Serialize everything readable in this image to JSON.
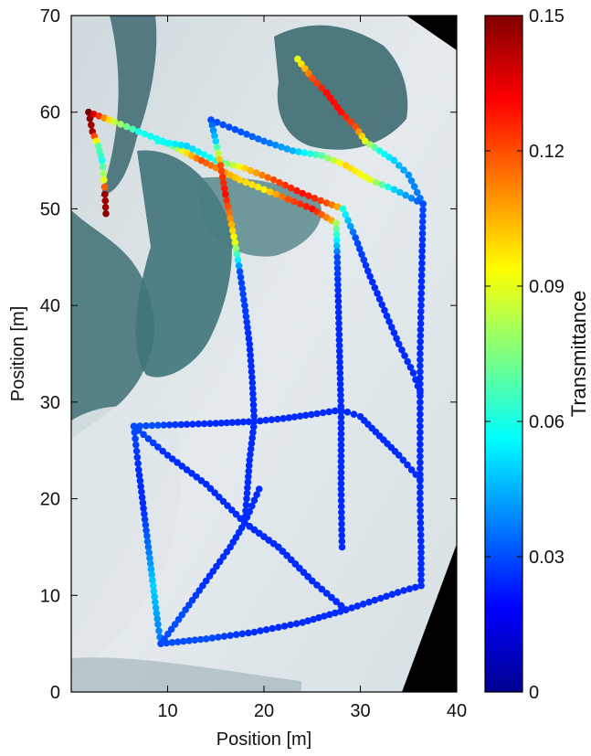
{
  "chart_data": {
    "type": "scatter",
    "title": "",
    "xlabel": "Position [m]",
    "ylabel": "Position [m]",
    "xlim": [
      0,
      40
    ],
    "ylim": [
      0,
      70
    ],
    "x_ticks": [
      "10",
      "20",
      "30",
      "40"
    ],
    "y_ticks": [
      "0",
      "10",
      "20",
      "30",
      "40",
      "50",
      "60",
      "70"
    ],
    "grid": false,
    "background": "aerial photograph of sea ice with meltwater ponds",
    "colorbar": {
      "label": "Transmittance",
      "range": [
        0,
        0.15
      ],
      "ticks": [
        "0",
        "0.03",
        "0.06",
        "0.09",
        "0.12",
        "0.15"
      ],
      "colormap": "jet"
    },
    "series": [
      {
        "points": [
          [
            1.8,
            60.0,
            0.148
          ],
          [
            2.2,
            58.0,
            0.145
          ],
          [
            2.8,
            56.5,
            0.07
          ],
          [
            3.2,
            55.0,
            0.06
          ],
          [
            3.4,
            53.0,
            0.09
          ],
          [
            3.5,
            51.5,
            0.145
          ],
          [
            3.6,
            49.5,
            0.148
          ]
        ]
      },
      {
        "points": [
          [
            1.8,
            60.0,
            0.15
          ],
          [
            4.5,
            59.0,
            0.085
          ],
          [
            7.0,
            58.0,
            0.06
          ],
          [
            9.5,
            57.0,
            0.055
          ],
          [
            11.5,
            56.0,
            0.09
          ],
          [
            13.5,
            55.0,
            0.12
          ],
          [
            15.5,
            54.0,
            0.11
          ],
          [
            17.5,
            53.0,
            0.1
          ],
          [
            20.0,
            52.0,
            0.095
          ],
          [
            22.5,
            51.0,
            0.12
          ],
          [
            25.0,
            50.0,
            0.13
          ],
          [
            27.5,
            48.5,
            0.1
          ]
        ]
      },
      {
        "points": [
          [
            9.0,
            57.0,
            0.06
          ],
          [
            12.0,
            56.5,
            0.05
          ],
          [
            15.0,
            55.0,
            0.06
          ],
          [
            18.0,
            54.2,
            0.1
          ],
          [
            21.0,
            53.0,
            0.12
          ],
          [
            24.0,
            51.6,
            0.13
          ],
          [
            26.5,
            50.6,
            0.12
          ],
          [
            28.2,
            50.0,
            0.1
          ]
        ]
      },
      {
        "points": [
          [
            23.5,
            65.5,
            0.09
          ],
          [
            25.0,
            63.5,
            0.12
          ],
          [
            26.5,
            62.0,
            0.13
          ],
          [
            28.0,
            60.0,
            0.13
          ],
          [
            29.5,
            58.5,
            0.12
          ],
          [
            30.5,
            57.0,
            0.09
          ],
          [
            32.0,
            56.0,
            0.06
          ],
          [
            33.5,
            55.0,
            0.05
          ],
          [
            35.0,
            53.5,
            0.04
          ],
          [
            36.5,
            50.5,
            0.035
          ]
        ]
      },
      {
        "points": [
          [
            14.5,
            59.2,
            0.03
          ],
          [
            17.0,
            58.2,
            0.03
          ],
          [
            20.0,
            57.0,
            0.035
          ],
          [
            23.0,
            56.0,
            0.045
          ],
          [
            26.0,
            55.5,
            0.07
          ],
          [
            28.5,
            54.5,
            0.1
          ],
          [
            31.0,
            53.0,
            0.09
          ],
          [
            33.5,
            52.0,
            0.05
          ],
          [
            36.5,
            50.5,
            0.03
          ]
        ]
      },
      {
        "points": [
          [
            14.5,
            59.2,
            0.03
          ],
          [
            15.0,
            57.0,
            0.05
          ],
          [
            15.5,
            54.5,
            0.12
          ],
          [
            16.0,
            51.5,
            0.13
          ],
          [
            16.5,
            49.0,
            0.11
          ],
          [
            17.0,
            46.5,
            0.09
          ],
          [
            17.5,
            43.5,
            0.03
          ],
          [
            18.0,
            40.0,
            0.028
          ],
          [
            18.5,
            36.0,
            0.025
          ],
          [
            18.8,
            32.0,
            0.025
          ],
          [
            19.0,
            28.0,
            0.025
          ]
        ]
      },
      {
        "points": [
          [
            27.5,
            48.5,
            0.08
          ],
          [
            27.6,
            45.0,
            0.03
          ],
          [
            27.7,
            41.0,
            0.025
          ],
          [
            27.8,
            37.0,
            0.025
          ],
          [
            27.9,
            33.0,
            0.025
          ],
          [
            28.0,
            29.0,
            0.025
          ],
          [
            28.0,
            25.0,
            0.025
          ],
          [
            28.0,
            21.0,
            0.025
          ],
          [
            28.1,
            15.0,
            0.025
          ]
        ]
      },
      {
        "points": [
          [
            28.2,
            50.0,
            0.06
          ],
          [
            29.5,
            47.0,
            0.03
          ],
          [
            31.0,
            43.0,
            0.025
          ],
          [
            32.5,
            39.5,
            0.025
          ],
          [
            34.0,
            36.0,
            0.025
          ],
          [
            35.5,
            33.0,
            0.025
          ],
          [
            36.2,
            31.0,
            0.025
          ]
        ]
      },
      {
        "points": [
          [
            36.5,
            50.5,
            0.03
          ],
          [
            36.4,
            45.0,
            0.025
          ],
          [
            36.3,
            40.0,
            0.025
          ],
          [
            36.2,
            35.0,
            0.025
          ],
          [
            36.2,
            30.0,
            0.025
          ],
          [
            36.2,
            25.0,
            0.025
          ],
          [
            36.2,
            20.0,
            0.025
          ],
          [
            36.3,
            15.0,
            0.025
          ],
          [
            36.3,
            11.0,
            0.025
          ]
        ]
      },
      {
        "points": [
          [
            6.5,
            27.5,
            0.03
          ],
          [
            9.0,
            27.6,
            0.03
          ],
          [
            12.0,
            27.7,
            0.025
          ],
          [
            15.0,
            27.8,
            0.025
          ],
          [
            19.0,
            28.0,
            0.025
          ],
          [
            22.0,
            28.3,
            0.025
          ],
          [
            25.5,
            28.8,
            0.025
          ],
          [
            28.0,
            29.2,
            0.025
          ],
          [
            30.0,
            28.5,
            0.025
          ],
          [
            32.0,
            26.5,
            0.025
          ],
          [
            34.0,
            24.5,
            0.025
          ],
          [
            36.2,
            22.0,
            0.025
          ]
        ]
      },
      {
        "points": [
          [
            19.0,
            28.0,
            0.025
          ],
          [
            18.5,
            24.0,
            0.025
          ],
          [
            18.2,
            20.0,
            0.025
          ],
          [
            18.0,
            17.5,
            0.025
          ]
        ]
      },
      {
        "points": [
          [
            6.5,
            27.5,
            0.03
          ],
          [
            10.0,
            24.5,
            0.025
          ],
          [
            14.0,
            21.5,
            0.025
          ],
          [
            18.0,
            17.5,
            0.025
          ],
          [
            21.5,
            15.0,
            0.025
          ],
          [
            25.0,
            11.5,
            0.025
          ],
          [
            28.5,
            8.5,
            0.025
          ]
        ]
      },
      {
        "points": [
          [
            6.5,
            27.5,
            0.03
          ],
          [
            7.0,
            23.0,
            0.025
          ],
          [
            7.5,
            19.0,
            0.025
          ],
          [
            8.0,
            15.0,
            0.035
          ],
          [
            8.5,
            11.0,
            0.05
          ],
          [
            9.0,
            7.0,
            0.04
          ],
          [
            9.3,
            5.0,
            0.035
          ]
        ]
      },
      {
        "points": [
          [
            9.3,
            5.0,
            0.03
          ],
          [
            11.5,
            8.0,
            0.03
          ],
          [
            14.0,
            11.5,
            0.025
          ],
          [
            16.5,
            15.0,
            0.025
          ],
          [
            18.0,
            17.5,
            0.025
          ],
          [
            19.5,
            21.0,
            0.025
          ]
        ]
      },
      {
        "points": [
          [
            9.3,
            5.0,
            0.03
          ],
          [
            14.0,
            5.5,
            0.03
          ],
          [
            19.0,
            6.2,
            0.025
          ],
          [
            24.0,
            7.2,
            0.025
          ],
          [
            28.5,
            8.5,
            0.025
          ],
          [
            31.5,
            9.5,
            0.025
          ],
          [
            34.5,
            10.5,
            0.025
          ],
          [
            36.3,
            11.0,
            0.025
          ]
        ]
      },
      {
        "points": [
          [
            18.0,
            17.5,
            0.025
          ],
          [
            21.5,
            15.0,
            0.025
          ],
          [
            25.0,
            11.5,
            0.025
          ],
          [
            28.5,
            8.5,
            0.025
          ]
        ]
      }
    ]
  }
}
